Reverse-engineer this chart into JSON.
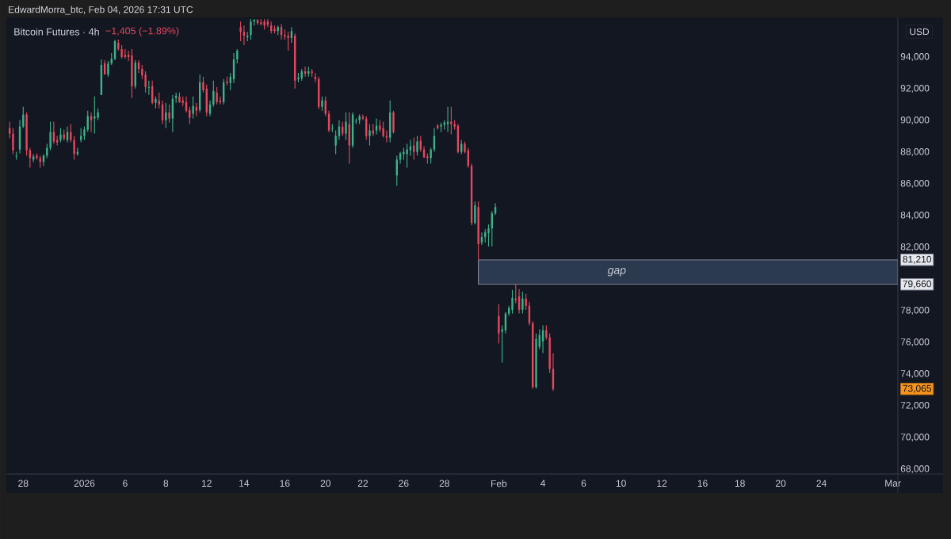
{
  "chart_data": {
    "type": "candlestick",
    "title": "Bitcoin Futures · 4h",
    "subtitle": "−1,405 (−1.89%)",
    "ylabel": "USD",
    "annotations": [
      "EdwardMorra_btc, Feb 04, 2026 17:31 UTC"
    ],
    "ylim": [
      67700,
      96500
    ],
    "yticks": [
      {
        "value": 68000,
        "label": "68,000"
      },
      {
        "value": 70000,
        "label": "70,000"
      },
      {
        "value": 72000,
        "label": "72,000"
      },
      {
        "value": 74000,
        "label": "74,000"
      },
      {
        "value": 76000,
        "label": "76,000"
      },
      {
        "value": 78000,
        "label": "78,000"
      },
      {
        "value": 82000,
        "label": "82,000"
      },
      {
        "value": 84000,
        "label": "84,000"
      },
      {
        "value": 86000,
        "label": "86,000"
      },
      {
        "value": 88000,
        "label": "88,000"
      },
      {
        "value": 90000,
        "label": "90,000"
      },
      {
        "value": 92000,
        "label": "92,000"
      },
      {
        "value": 94000,
        "label": "94,000"
      },
      {
        "value": 81210,
        "label": "81,210"
      },
      {
        "value": 79660,
        "label": "79,660"
      },
      {
        "value": 73065,
        "label": "73,065"
      }
    ],
    "bands": [
      {
        "axis": "y",
        "from": 79660,
        "to": 81210,
        "label": "gap",
        "color": "#2c3a50"
      }
    ],
    "categories": [
      null,
      null,
      null,
      null,
      "28",
      null,
      null,
      null,
      null,
      null,
      null,
      null,
      null,
      null,
      null,
      null,
      null,
      null,
      null,
      null,
      null,
      null,
      "2026",
      null,
      null,
      null,
      null,
      null,
      null,
      null,
      null,
      null,
      null,
      null,
      "6",
      null,
      null,
      null,
      null,
      null,
      null,
      null,
      null,
      null,
      null,
      null,
      "8",
      null,
      null,
      null,
      null,
      null,
      null,
      null,
      null,
      null,
      null,
      null,
      "12",
      null,
      null,
      null,
      null,
      null,
      null,
      null,
      null,
      null,
      null,
      "14",
      null,
      null,
      null,
      null,
      null,
      null,
      null,
      null,
      null,
      null,
      null,
      "16",
      null,
      null,
      null,
      null,
      null,
      null,
      null,
      null,
      null,
      null,
      null,
      "20",
      null,
      null,
      null,
      null,
      null,
      null,
      null,
      null,
      null,
      null,
      "22",
      null,
      null,
      null,
      null,
      null,
      null,
      null,
      null,
      null,
      null,
      null,
      "26",
      null,
      null,
      null,
      null,
      null,
      null,
      null,
      null,
      null,
      null,
      null,
      "28",
      null,
      null,
      null,
      null,
      null,
      null,
      null,
      null,
      null,
      null,
      null,
      null,
      null,
      null,
      null,
      "Feb",
      null,
      null,
      null,
      null,
      null,
      null,
      null,
      null,
      null,
      null,
      null,
      null,
      "4",
      null,
      null,
      null,
      null,
      null,
      null,
      null,
      null,
      null,
      null,
      null,
      "6",
      null,
      null,
      null,
      null,
      null,
      null,
      null,
      null,
      null,
      null,
      "10",
      null,
      null,
      null,
      null,
      null,
      null,
      null,
      null,
      null,
      null,
      null,
      "12",
      null,
      null,
      null,
      null,
      null,
      null,
      null,
      null,
      null,
      null,
      null,
      "16",
      null,
      null,
      null,
      null,
      null,
      null,
      null,
      null,
      null,
      null,
      "18",
      null,
      null,
      null,
      null,
      null,
      null,
      null,
      null,
      null,
      null,
      null,
      "20",
      null,
      null,
      null,
      null,
      null,
      null,
      null,
      null,
      null,
      null,
      null,
      "24",
      null,
      null,
      null,
      null,
      null,
      null,
      null,
      null,
      null,
      null,
      null,
      null,
      null,
      null,
      null,
      null,
      null,
      null,
      null,
      null,
      "Mar",
      null
    ],
    "ohlc": [
      [
        89520,
        89920,
        88870,
        89170
      ],
      [
        89170,
        89520,
        87880,
        88120
      ],
      [
        87730,
        88020,
        87530,
        87780
      ],
      [
        88170,
        90020,
        87920,
        89620
      ],
      [
        89620,
        90860,
        89520,
        90370
      ],
      [
        90370,
        90510,
        87780,
        88120
      ],
      [
        88120,
        88270,
        87030,
        87630
      ],
      [
        87530,
        87880,
        87380,
        87730
      ],
      [
        87780,
        87920,
        87530,
        87630
      ],
      [
        87630,
        87780,
        87030,
        87380
      ],
      [
        87380,
        87880,
        87130,
        87780
      ],
      [
        87780,
        88520,
        87630,
        88270
      ],
      [
        88270,
        89920,
        88120,
        89270
      ],
      [
        89270,
        89920,
        88520,
        88670
      ],
      [
        88770,
        89020,
        88420,
        88620
      ],
      [
        88770,
        89520,
        88620,
        89120
      ],
      [
        89120,
        89420,
        88720,
        88870
      ],
      [
        88770,
        89620,
        88620,
        89270
      ],
      [
        89270,
        89770,
        88620,
        88770
      ],
      [
        88770,
        89020,
        87530,
        87880
      ],
      [
        87880,
        88270,
        87780,
        88020
      ],
      [
        88770,
        89520,
        88620,
        89020
      ],
      [
        89020,
        89620,
        88770,
        89420
      ],
      [
        89420,
        90610,
        89270,
        90270
      ],
      [
        90270,
        90510,
        89270,
        90020
      ],
      [
        90120,
        91510,
        89170,
        90270
      ],
      [
        90170,
        90760,
        90020,
        90510
      ],
      [
        91610,
        93850,
        91610,
        93500
      ],
      [
        93600,
        93800,
        92900,
        92900
      ],
      [
        92900,
        93750,
        92760,
        93600
      ],
      [
        93600,
        94250,
        93500,
        93900
      ],
      [
        93900,
        95100,
        93800,
        95000
      ],
      [
        94900,
        95100,
        94400,
        94500
      ],
      [
        94500,
        94750,
        93900,
        94000
      ],
      [
        94150,
        94500,
        93900,
        94000
      ],
      [
        94150,
        94400,
        93750,
        94000
      ],
      [
        94100,
        94500,
        91410,
        92160
      ],
      [
        92160,
        93800,
        92010,
        93650
      ],
      [
        93650,
        93800,
        93000,
        93250
      ],
      [
        93250,
        93500,
        92610,
        92850
      ],
      [
        92900,
        93100,
        91760,
        92110
      ],
      [
        92060,
        92510,
        91610,
        92110
      ],
      [
        92160,
        92510,
        91010,
        91110
      ],
      [
        91110,
        91510,
        90760,
        91360
      ],
      [
        91260,
        91760,
        90760,
        91010
      ],
      [
        91010,
        91260,
        89770,
        90020
      ],
      [
        90020,
        91110,
        89520,
        90510
      ],
      [
        90510,
        91010,
        89870,
        90120
      ],
      [
        90120,
        91610,
        89270,
        91360
      ],
      [
        91410,
        91760,
        91110,
        91560
      ],
      [
        91510,
        91760,
        91110,
        91160
      ],
      [
        91260,
        91510,
        90910,
        91110
      ],
      [
        91160,
        91510,
        90510,
        90610
      ],
      [
        90660,
        90860,
        89770,
        90170
      ],
      [
        90420,
        91510,
        90120,
        90910
      ],
      [
        90860,
        91110,
        90270,
        90610
      ],
      [
        90660,
        92900,
        90510,
        92410
      ],
      [
        92410,
        92760,
        91760,
        91910
      ],
      [
        92010,
        92260,
        90270,
        90510
      ],
      [
        90420,
        91260,
        90270,
        91010
      ],
      [
        91010,
        92510,
        90860,
        91860
      ],
      [
        91760,
        92110,
        91010,
        91160
      ],
      [
        91260,
        91510,
        91010,
        91160
      ],
      [
        91160,
        92610,
        91010,
        92410
      ],
      [
        92460,
        92760,
        92210,
        92360
      ],
      [
        92360,
        93000,
        91910,
        92760
      ],
      [
        92610,
        94250,
        92360,
        93850
      ],
      [
        93850,
        94500,
        93600,
        94400
      ],
      [
        95890,
        96240,
        95000,
        95590
      ],
      [
        95590,
        95990,
        94750,
        95340
      ],
      [
        95240,
        95590,
        95000,
        95340
      ],
      [
        95390,
        96400,
        95100,
        96240
      ],
      [
        96240,
        96390,
        95990,
        96340
      ],
      [
        96340,
        96390,
        96040,
        96140
      ],
      [
        96190,
        96390,
        95990,
        96090
      ],
      [
        96240,
        96390,
        95740,
        95990
      ],
      [
        96240,
        96390,
        95890,
        96040
      ],
      [
        95990,
        96240,
        95490,
        95640
      ],
      [
        95790,
        95990,
        95490,
        95640
      ],
      [
        95640,
        95990,
        95390,
        95890
      ],
      [
        95890,
        96090,
        95100,
        95390
      ],
      [
        95390,
        95740,
        95100,
        95290
      ],
      [
        95340,
        95590,
        94400,
        95200
      ],
      [
        95200,
        95890,
        94900,
        95640
      ],
      [
        95340,
        95490,
        92010,
        92510
      ],
      [
        92610,
        93000,
        92410,
        92710
      ],
      [
        92660,
        93250,
        92510,
        93100
      ],
      [
        93100,
        93400,
        92760,
        92950
      ],
      [
        92950,
        93400,
        92760,
        93100
      ],
      [
        93100,
        93250,
        92760,
        93000
      ],
      [
        92760,
        93000,
        92410,
        92610
      ],
      [
        92610,
        92760,
        90710,
        90860
      ],
      [
        90860,
        91510,
        90610,
        91260
      ],
      [
        91260,
        91510,
        90270,
        90420
      ],
      [
        90420,
        90610,
        89270,
        89370
      ],
      [
        89470,
        89770,
        89270,
        89520
      ],
      [
        88420,
        89370,
        87880,
        89020
      ],
      [
        89020,
        90020,
        88770,
        89620
      ],
      [
        89620,
        89920,
        89020,
        89170
      ],
      [
        89170,
        90510,
        88770,
        89920
      ],
      [
        89770,
        90510,
        87280,
        88420
      ],
      [
        88420,
        90510,
        88270,
        90370
      ],
      [
        89920,
        90120,
        89770,
        89970
      ],
      [
        90020,
        90370,
        89770,
        90270
      ],
      [
        90220,
        90370,
        90020,
        90120
      ],
      [
        90120,
        90270,
        88770,
        89020
      ],
      [
        89020,
        89770,
        88420,
        89370
      ],
      [
        89370,
        89770,
        89020,
        89170
      ],
      [
        89370,
        90120,
        89120,
        89670
      ],
      [
        89670,
        90020,
        89270,
        89420
      ],
      [
        89520,
        89920,
        88920,
        89020
      ],
      [
        89020,
        89370,
        88620,
        88920
      ],
      [
        88920,
        91260,
        88620,
        90510
      ],
      [
        90510,
        90610,
        89170,
        89270
      ],
      [
        86530,
        87780,
        85880,
        87530
      ],
      [
        87530,
        88020,
        87280,
        87920
      ],
      [
        87880,
        88270,
        87530,
        88020
      ],
      [
        87880,
        88520,
        87030,
        88170
      ],
      [
        88120,
        88770,
        87780,
        88370
      ],
      [
        88420,
        88920,
        87530,
        88020
      ],
      [
        88020,
        89020,
        87780,
        88670
      ],
      [
        88720,
        89020,
        88020,
        88170
      ],
      [
        88170,
        88370,
        87630,
        87680
      ],
      [
        87730,
        87920,
        87280,
        87630
      ],
      [
        87630,
        88270,
        87280,
        88170
      ],
      [
        88170,
        89520,
        88020,
        89020
      ],
      [
        89670,
        89770,
        89420,
        89520
      ],
      [
        89620,
        89870,
        89270,
        89720
      ],
      [
        89720,
        90020,
        89420,
        89870
      ],
      [
        89770,
        90860,
        89270,
        89920
      ],
      [
        89920,
        90860,
        89120,
        89770
      ],
      [
        89770,
        90020,
        89420,
        89620
      ],
      [
        89670,
        89770,
        87920,
        88020
      ],
      [
        88020,
        88770,
        87880,
        88520
      ],
      [
        88520,
        88670,
        87920,
        88020
      ],
      [
        88120,
        88270,
        87030,
        87130
      ],
      [
        87130,
        87280,
        83390,
        83540
      ],
      [
        83540,
        84890,
        83440,
        84640
      ],
      [
        84540,
        84890,
        81210,
        82200
      ],
      [
        82300,
        82940,
        82150,
        82650
      ],
      [
        82650,
        83140,
        82300,
        82940
      ],
      [
        82890,
        83440,
        82050,
        83190
      ],
      [
        83190,
        84290,
        82050,
        84140
      ],
      [
        84140,
        84790,
        84040,
        84540
      ],
      [
        77670,
        78410,
        75920,
        76570
      ],
      [
        76670,
        77070,
        74730,
        76820
      ],
      [
        76770,
        77910,
        76570,
        77820
      ],
      [
        77820,
        78310,
        77670,
        78160
      ],
      [
        78060,
        79310,
        77820,
        78810
      ],
      [
        78760,
        79660,
        78460,
        78660
      ],
      [
        78910,
        79360,
        77820,
        78060
      ],
      [
        78060,
        79210,
        77820,
        78760
      ],
      [
        78760,
        79060,
        78060,
        78310
      ],
      [
        78310,
        78560,
        77070,
        77220
      ],
      [
        77220,
        77320,
        73080,
        73180
      ],
      [
        73180,
        76570,
        73080,
        76220
      ],
      [
        75720,
        76820,
        75570,
        76470
      ],
      [
        76070,
        77070,
        75320,
        76770
      ],
      [
        76770,
        77070,
        76170,
        76320
      ],
      [
        76320,
        76570,
        74080,
        74330
      ],
      [
        74330,
        75320,
        72940,
        73065
      ],
      null,
      null,
      null,
      null,
      null,
      null,
      null,
      null,
      null,
      null,
      null,
      null,
      null,
      null,
      null,
      null,
      null,
      null,
      null,
      null,
      null,
      null,
      null,
      null,
      null,
      null,
      null,
      null,
      null,
      null,
      null,
      null,
      null,
      null,
      null,
      null,
      null,
      null,
      null,
      null,
      null,
      null,
      null,
      null,
      null,
      null,
      null,
      null,
      null,
      null,
      null,
      null,
      null,
      null,
      null,
      null,
      null,
      null,
      null,
      null,
      null,
      null,
      null,
      null,
      null,
      null,
      null,
      null,
      null,
      null,
      null,
      null,
      null,
      null,
      null,
      null,
      null,
      null,
      null,
      null,
      null,
      null,
      null,
      null,
      null,
      null,
      null,
      null,
      null,
      null,
      null,
      null,
      null,
      null,
      null,
      null,
      null,
      null,
      null,
      null,
      null
    ]
  }
}
